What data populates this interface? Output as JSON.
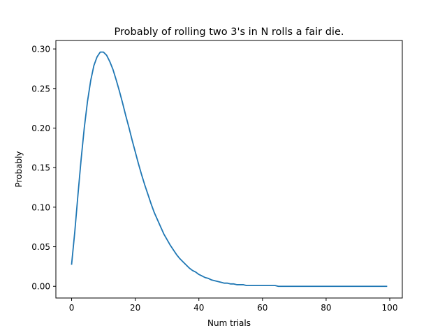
{
  "chart_data": {
    "type": "line",
    "title": "Probably of rolling two 3's in N rolls a fair die.",
    "xlabel": "Num trials",
    "ylabel": "Probably",
    "xlim": [
      -4.95,
      103.95
    ],
    "ylim": [
      -0.0148,
      0.3107
    ],
    "xticks": [
      0,
      20,
      40,
      60,
      80,
      100
    ],
    "xtick_labels": [
      "0",
      "20",
      "40",
      "60",
      "80",
      "100"
    ],
    "yticks": [
      0.0,
      0.05,
      0.1,
      0.15,
      0.2,
      0.25,
      0.3
    ],
    "ytick_labels": [
      "0.00",
      "0.05",
      "0.10",
      "0.15",
      "0.20",
      "0.25",
      "0.30"
    ],
    "grid": false,
    "line_color": "#1f77b4",
    "series": [
      {
        "x": [
          0,
          1,
          2,
          3,
          4,
          5,
          6,
          7,
          8,
          9,
          10,
          11,
          12,
          13,
          14,
          15,
          16,
          17,
          18,
          19,
          20,
          21,
          22,
          23,
          24,
          25,
          26,
          27,
          28,
          29,
          30,
          31,
          32,
          33,
          34,
          35,
          36,
          37,
          38,
          39,
          40,
          41,
          42,
          43,
          44,
          45,
          46,
          47,
          48,
          49,
          50,
          51,
          52,
          53,
          54,
          55,
          56,
          57,
          58,
          59,
          60,
          61,
          62,
          63,
          64,
          65,
          66,
          67,
          68,
          69,
          70,
          71,
          72,
          73,
          74,
          75,
          76,
          77,
          78,
          79,
          80,
          81,
          82,
          83,
          84,
          85,
          86,
          87,
          88,
          89,
          90,
          91,
          92,
          93,
          94,
          95,
          96,
          97,
          98,
          99
        ],
        "values": [
          0.028,
          0.069,
          0.116,
          0.161,
          0.201,
          0.234,
          0.26,
          0.279,
          0.29,
          0.296,
          0.296,
          0.292,
          0.284,
          0.274,
          0.261,
          0.247,
          0.232,
          0.216,
          0.201,
          0.185,
          0.17,
          0.155,
          0.141,
          0.128,
          0.116,
          0.104,
          0.093,
          0.084,
          0.075,
          0.066,
          0.059,
          0.052,
          0.046,
          0.04,
          0.035,
          0.031,
          0.027,
          0.023,
          0.02,
          0.018,
          0.015,
          0.013,
          0.011,
          0.01,
          0.008,
          0.007,
          0.006,
          0.005,
          0.004,
          0.004,
          0.003,
          0.003,
          0.002,
          0.002,
          0.002,
          0.001,
          0.001,
          0.001,
          0.001,
          0.001,
          0.001,
          0.001,
          0.001,
          0.001,
          0.001,
          0.0,
          0.0,
          0.0,
          0.0,
          0.0,
          0.0,
          0.0,
          0.0,
          0.0,
          0.0,
          0.0,
          0.0,
          0.0,
          0.0,
          0.0,
          0.0,
          0.0,
          0.0,
          0.0,
          0.0,
          0.0,
          0.0,
          0.0,
          0.0,
          0.0,
          0.0,
          0.0,
          0.0,
          0.0,
          0.0,
          0.0,
          0.0,
          0.0,
          0.0,
          0.0
        ]
      }
    ]
  }
}
